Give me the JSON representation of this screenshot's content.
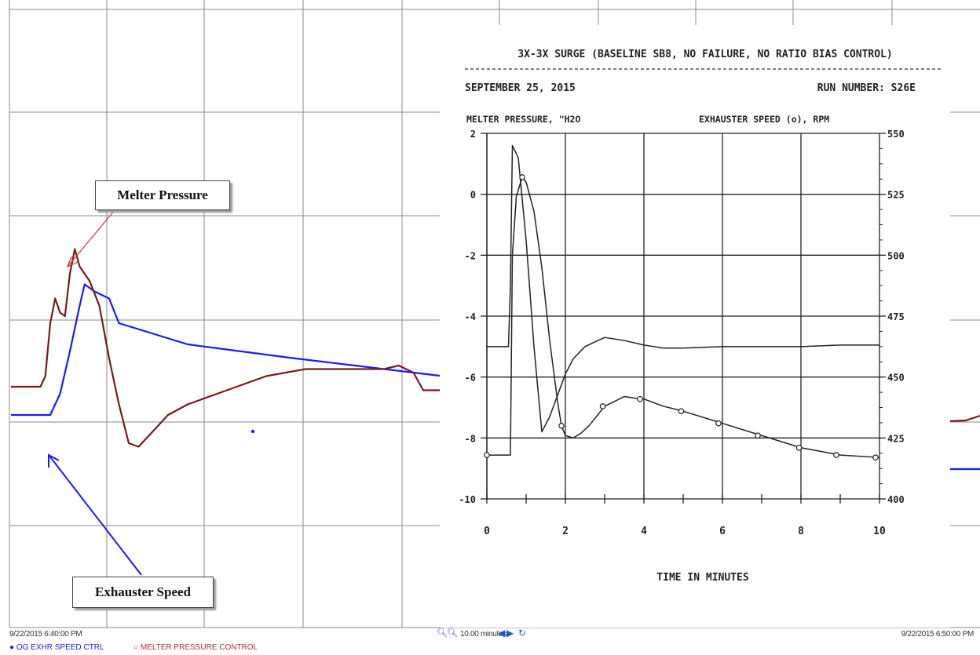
{
  "chart_data": [
    {
      "type": "line",
      "title": "",
      "x_start_label": "9/22/2015 6:40:00 PM",
      "x_end_label": "9/22/2015 6:50:00 PM",
      "time_span": "10.00 minutes",
      "grid": true,
      "series": [
        {
          "name": "OG EXHR SPEED CTRL",
          "color": "#1a1aff",
          "x": [
            0,
            0.4,
            0.45,
            0.5,
            0.6,
            0.7,
            0.75,
            0.8,
            0.85,
            1.0,
            1.1,
            1.8,
            2.9,
            4.4
          ],
          "values": [
            0.2,
            0.2,
            0.5,
            0.8,
            2.0,
            3.3,
            3.9,
            3.8,
            3.7,
            3.5,
            2.8,
            2.2,
            1.8,
            1.3
          ]
        },
        {
          "name": "MELTER PRESSURE CONTROL",
          "color": "#7a1a1a",
          "x": [
            0,
            0.3,
            0.35,
            0.4,
            0.45,
            0.5,
            0.55,
            0.6,
            0.65,
            0.7,
            0.8,
            0.9,
            1.0,
            1.1,
            1.2,
            1.3,
            1.4,
            1.6,
            1.8,
            2.2,
            2.6,
            3.0,
            3.4,
            3.8,
            3.95,
            4.1,
            4.2,
            4.4
          ],
          "values": [
            1.0,
            1.0,
            1.3,
            2.8,
            3.5,
            3.1,
            3.0,
            4.2,
            4.9,
            4.4,
            4.0,
            3.3,
            1.8,
            0.5,
            -0.6,
            -0.7,
            -0.4,
            0.2,
            0.5,
            0.9,
            1.3,
            1.5,
            1.5,
            1.5,
            1.6,
            1.4,
            0.9,
            0.9
          ]
        }
      ],
      "annotations": [
        "Melter Pressure",
        "Exhauster Speed"
      ]
    },
    {
      "type": "line",
      "title": "3X-3X SURGE (BASELINE SB8, NO FAILURE, NO RATIO BIAS CONTROL)",
      "date": "SEPTEMBER 25, 2015",
      "run_number": "RUN NUMBER: S26E",
      "xlabel": "TIME IN MINUTES",
      "ylabel_left": "MELTER PRESSURE, \"H2O",
      "ylabel_right": "EXHAUSTER SPEED (o), RPM",
      "xlim": [
        0,
        10
      ],
      "ylim_left": [
        -10,
        2
      ],
      "ylim_right": [
        400,
        550
      ],
      "x_ticks": [
        "0",
        "2",
        "4",
        "6",
        "8",
        "10"
      ],
      "y_ticks_left": [
        "2",
        "0",
        "-2",
        "-4",
        "-6",
        "-8",
        "-10"
      ],
      "y_ticks_right": [
        "550",
        "525",
        "500",
        "475",
        "450",
        "425",
        "400"
      ],
      "grid": true,
      "series": [
        {
          "name": "MELTER PRESSURE",
          "x": [
            0,
            0.25,
            0.3,
            0.35,
            0.4,
            0.45,
            0.5,
            0.55,
            0.6,
            0.65,
            0.8,
            1.0,
            1.2,
            1.4,
            1.6,
            1.8,
            2.0,
            2.2,
            2.5,
            3.0,
            3.5,
            4.0,
            4.5,
            5,
            6,
            7,
            8,
            9,
            10
          ],
          "values": [
            -5.0,
            -5.0,
            -5.0,
            -5.0,
            -5.0,
            -5.0,
            -5.0,
            -5.0,
            -3.0,
            1.6,
            1.2,
            -1.5,
            -5.0,
            -7.8,
            -7.3,
            -6.6,
            -5.9,
            -5.4,
            -5.0,
            -4.7,
            -4.8,
            -4.95,
            -5.05,
            -5.05,
            -5.0,
            -5.0,
            -5.0,
            -4.95,
            -4.95
          ]
        },
        {
          "name": "EXHAUSTER SPEED (o)",
          "x": [
            0,
            0.3,
            0.6,
            0.65,
            0.75,
            0.9,
            1.0,
            1.2,
            1.4,
            1.6,
            1.8,
            1.9,
            2.0,
            2.2,
            2.4,
            2.6,
            3.0,
            3.5,
            3.9,
            4.0,
            4.5,
            5,
            6,
            7,
            8,
            9,
            10
          ],
          "values": [
            418,
            418,
            418,
            500,
            524,
            532,
            530,
            518,
            495,
            465,
            440,
            430,
            426,
            425,
            427,
            430,
            438,
            442,
            441,
            441,
            438,
            436,
            431,
            426,
            421,
            418,
            417
          ]
        }
      ],
      "markers": {
        "x": [
          0,
          0.9,
          1.9,
          2.95,
          3.9,
          4.95,
          5.9,
          6.9,
          7.95,
          8.9,
          9.9
        ],
        "values": [
          418,
          532,
          430,
          438,
          441,
          436,
          431,
          426,
          421,
          418,
          417
        ]
      }
    }
  ],
  "toolbar": {
    "time_span_label": "10.00 minutes"
  },
  "legend": {
    "item1": "OG EXHR SPEED CTRL",
    "item2": "MELTER PRESSURE CONTROL"
  },
  "callouts": {
    "melter": "Melter Pressure",
    "exhauster": "Exhauster Speed"
  },
  "colors": {
    "exhauster": "#1a1aff",
    "melter": "#7a1a1a",
    "grid": "#8a8a8a",
    "arrow_red": "#cc3333"
  }
}
